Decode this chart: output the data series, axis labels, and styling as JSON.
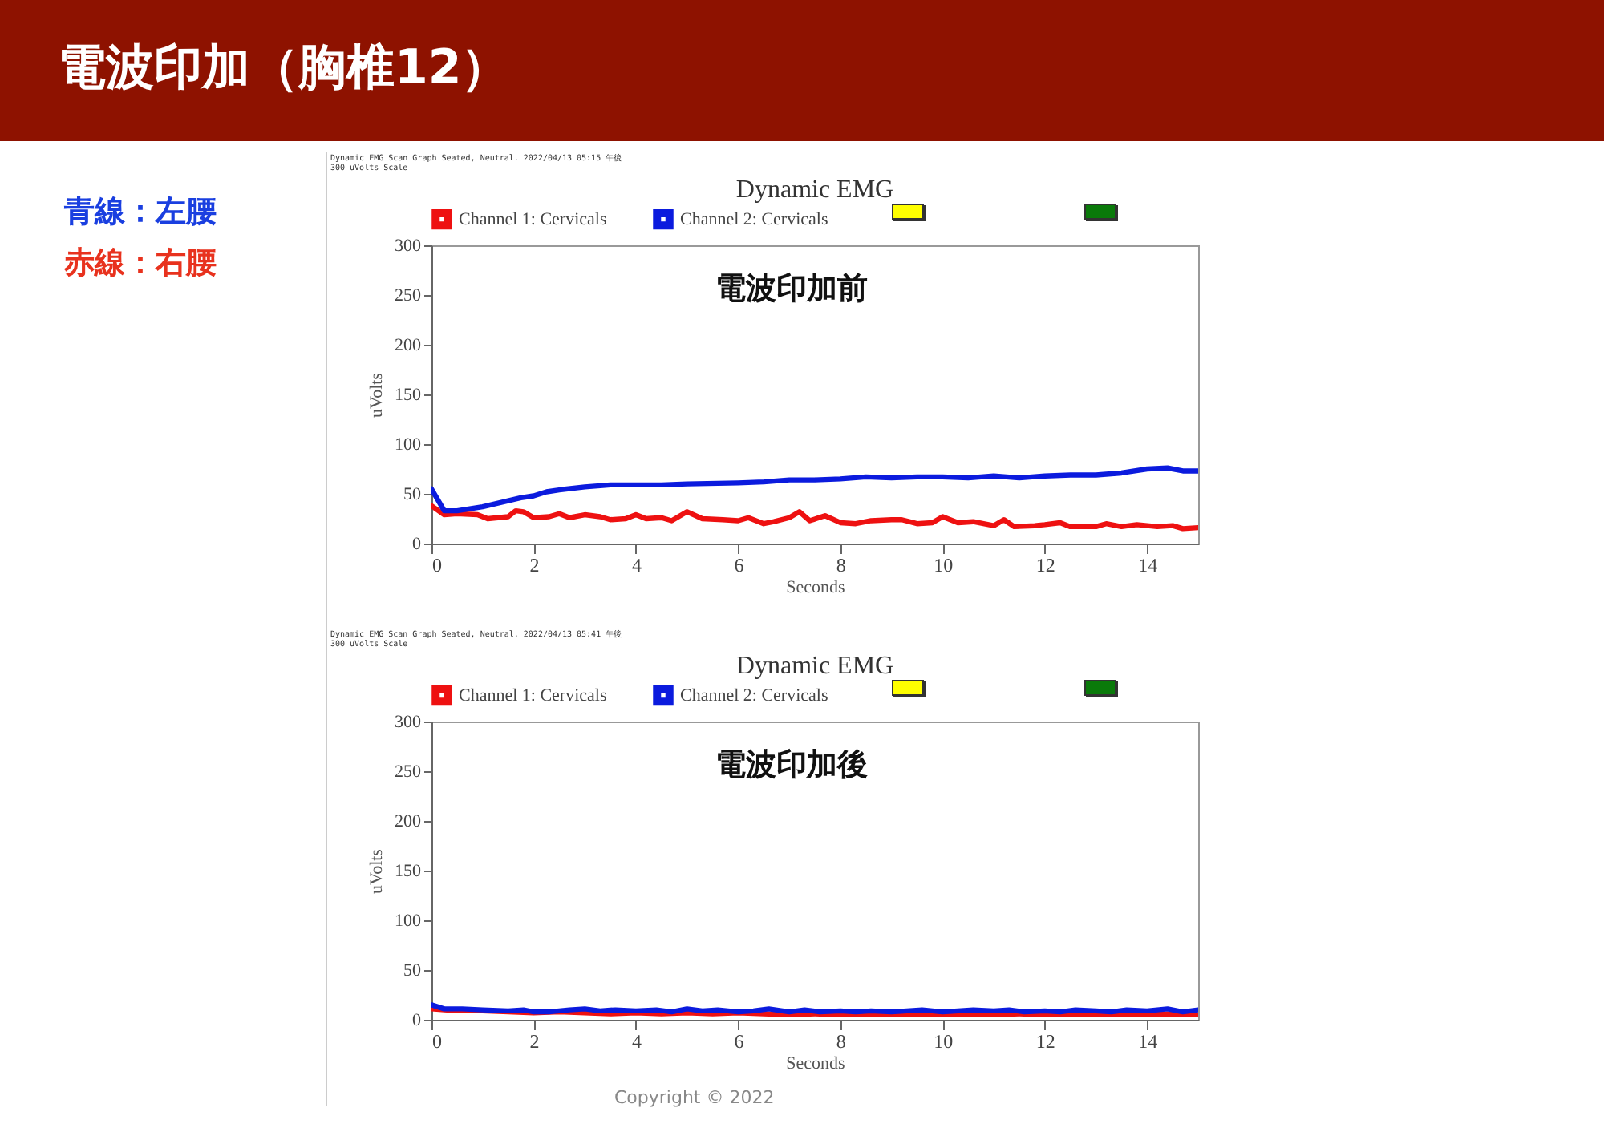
{
  "chart_data": [
    {
      "type": "line",
      "title": "Dynamic EMG",
      "subtitle": "電波印加前",
      "xlabel": "Seconds",
      "ylabel": "uVolts",
      "xlim": [
        0,
        15
      ],
      "ylim": [
        0,
        300
      ],
      "xticks": [
        0,
        2,
        4,
        6,
        8,
        10,
        12,
        14
      ],
      "yticks": [
        0,
        50,
        100,
        150,
        200,
        250,
        300
      ],
      "grid": false,
      "legend": "top",
      "marker": "none",
      "line_style": "solid",
      "annotations": [
        "Dynamic EMG Scan Graph Seated, Neutral.   2022/04/13 05:15 午後",
        "300  uVolts  Scale",
        "電波印加（胸椎12）",
        "青線：左腰",
        "赤線：右腰"
      ],
      "series": [
        {
          "name": "Channel 1:    Cervicals",
          "color": "#ee1111",
          "x": [
            0,
            0.25,
            0.5,
            0.9,
            1.1,
            1.5,
            1.65,
            1.8,
            2,
            2.3,
            2.5,
            2.7,
            3,
            3.3,
            3.5,
            3.8,
            4,
            4.2,
            4.5,
            4.7,
            5,
            5.3,
            5.7,
            6,
            6.2,
            6.5,
            6.7,
            7,
            7.2,
            7.4,
            7.7,
            8,
            8.3,
            8.6,
            9,
            9.2,
            9.5,
            9.8,
            10,
            10.3,
            10.6,
            11,
            11.2,
            11.4,
            11.8,
            12,
            12.3,
            12.5,
            13,
            13.2,
            13.5,
            13.8,
            14.2,
            14.5,
            14.7,
            15
          ],
          "values": [
            38,
            29,
            30,
            29,
            25,
            27,
            33,
            32,
            26,
            27,
            30,
            26,
            29,
            27,
            24,
            25,
            29,
            25,
            26,
            23,
            32,
            25,
            24,
            23,
            26,
            20,
            22,
            26,
            32,
            23,
            28,
            21,
            20,
            23,
            24,
            24,
            20,
            21,
            27,
            21,
            22,
            18,
            24,
            17,
            18,
            19,
            21,
            17,
            17,
            20,
            17,
            19,
            17,
            18,
            15,
            16
          ]
        },
        {
          "name": "Channel 2:  Cervicals",
          "color": "#0b1bde",
          "x": [
            0,
            0.25,
            0.5,
            1,
            1.5,
            1.75,
            2,
            2.25,
            2.5,
            3,
            3.5,
            4,
            4.5,
            5,
            6,
            6.5,
            7,
            7.5,
            8,
            8.5,
            9,
            9.5,
            10,
            10.5,
            11,
            11.5,
            12,
            12.5,
            13,
            13.5,
            14,
            14.4,
            14.7,
            15
          ],
          "values": [
            55,
            33,
            33,
            37,
            43,
            46,
            48,
            52,
            54,
            57,
            59,
            59,
            59,
            60,
            61,
            62,
            64,
            64,
            65,
            67,
            66,
            67,
            67,
            66,
            68,
            66,
            68,
            69,
            69,
            71,
            75,
            76,
            73,
            73
          ]
        }
      ]
    },
    {
      "type": "line",
      "title": "Dynamic EMG",
      "subtitle": "電波印加後",
      "xlabel": "Seconds",
      "ylabel": "uVolts",
      "xlim": [
        0,
        15
      ],
      "ylim": [
        0,
        300
      ],
      "xticks": [
        0,
        2,
        4,
        6,
        8,
        10,
        12,
        14
      ],
      "yticks": [
        0,
        50,
        100,
        150,
        200,
        250,
        300
      ],
      "grid": false,
      "legend": "top",
      "marker": "none",
      "line_style": "solid",
      "annotations": [
        "Dynamic EMG Scan Graph Seated, Neutral.   2022/04/13 05:41 午後",
        "300  uVolts  Scale",
        "Copyright © 2022"
      ],
      "series": [
        {
          "name": "Channel 1:    Cervicals",
          "color": "#ee1111",
          "x": [
            0,
            0.5,
            1,
            1.5,
            2,
            2.5,
            3,
            3.5,
            4,
            4.5,
            5,
            5.5,
            6,
            6.5,
            7,
            7.5,
            8,
            8.5,
            9,
            9.5,
            10,
            10.5,
            11,
            11.5,
            12,
            12.5,
            13,
            13.5,
            14,
            14.5,
            15
          ],
          "values": [
            11,
            9,
            9,
            8,
            7,
            8,
            7,
            6,
            7,
            6,
            7,
            6,
            7,
            6,
            5,
            6,
            5,
            6,
            5,
            6,
            5,
            6,
            5,
            6,
            5,
            6,
            5,
            6,
            5,
            6,
            5
          ]
        },
        {
          "name": "Channel 2:  Cervicals",
          "color": "#0b1bde",
          "x": [
            0,
            0.25,
            0.6,
            1,
            1.5,
            1.8,
            2,
            2.3,
            2.7,
            3,
            3.3,
            3.6,
            4,
            4.4,
            4.7,
            5,
            5.3,
            5.6,
            6,
            6.3,
            6.6,
            7,
            7.3,
            7.6,
            8,
            8.3,
            8.6,
            9,
            9.3,
            9.6,
            10,
            10.3,
            10.6,
            11,
            11.3,
            11.6,
            12,
            12.3,
            12.6,
            13,
            13.3,
            13.6,
            14,
            14.4,
            14.7,
            15
          ],
          "values": [
            15,
            11,
            11,
            10,
            9,
            10,
            8,
            8,
            10,
            11,
            9,
            10,
            9,
            10,
            8,
            11,
            9,
            10,
            8,
            9,
            11,
            8,
            10,
            8,
            9,
            8,
            9,
            8,
            9,
            10,
            8,
            9,
            10,
            9,
            10,
            8,
            9,
            8,
            10,
            9,
            8,
            10,
            9,
            11,
            8,
            10
          ]
        }
      ]
    }
  ]
}
